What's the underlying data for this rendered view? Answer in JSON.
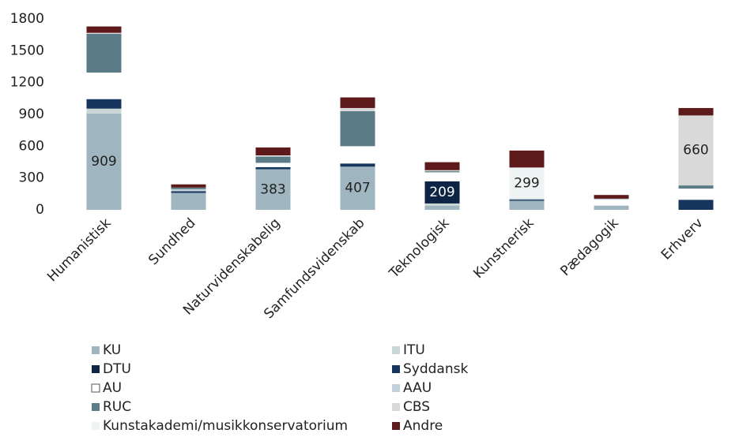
{
  "chart_data": {
    "type": "bar",
    "stacked": true,
    "categories": [
      "Humanistisk",
      "Sundhed",
      "Naturvidenskabelig",
      "Samfundsvidenskab",
      "Teknologisk",
      "Kunstnerisk",
      "Pædagogik",
      "Erhverv"
    ],
    "ylim": [
      0,
      1800
    ],
    "yticks": [
      0,
      300,
      600,
      900,
      1200,
      1500,
      1800
    ],
    "grid": false,
    "legend": "bottom",
    "series": [
      {
        "name": "KU",
        "color": "#9fb5bf",
        "values": [
          909,
          160,
          383,
          407,
          40,
          85,
          40,
          0
        ],
        "value_labels": [
          "909",
          null,
          "383",
          "407",
          null,
          null,
          null,
          null
        ]
      },
      {
        "name": "ITU",
        "color": "#c9d8d6",
        "values": [
          45,
          0,
          0,
          0,
          20,
          0,
          0,
          0
        ]
      },
      {
        "name": "DTU",
        "color": "#0d2444",
        "values": [
          0,
          0,
          0,
          0,
          209,
          0,
          0,
          0
        ],
        "value_labels": [
          null,
          null,
          null,
          null,
          "209",
          null,
          null,
          null
        ]
      },
      {
        "name": "Syddansk",
        "color": "#17365d",
        "values": [
          90,
          15,
          20,
          30,
          0,
          10,
          0,
          95
        ]
      },
      {
        "name": "AU",
        "color": "#ffffff",
        "values": [
          250,
          0,
          40,
          163,
          85,
          0,
          55,
          105
        ]
      },
      {
        "name": "AAU",
        "color": "#c3d1da",
        "values": [
          0,
          20,
          0,
          0,
          0,
          0,
          10,
          0
        ]
      },
      {
        "name": "RUC",
        "color": "#5b7b87",
        "values": [
          365,
          15,
          60,
          330,
          10,
          5,
          0,
          30
        ]
      },
      {
        "name": "CBS",
        "color": "#d9d9d9",
        "values": [
          10,
          0,
          0,
          30,
          10,
          0,
          0,
          660
        ],
        "value_labels": [
          null,
          null,
          null,
          null,
          null,
          null,
          null,
          "660"
        ]
      },
      {
        "name": "Kunstakademi/musikkonservatorium",
        "color": "#eef3f4",
        "values": [
          0,
          0,
          10,
          0,
          0,
          299,
          0,
          0
        ],
        "value_labels": [
          null,
          null,
          null,
          null,
          null,
          "299",
          null,
          null
        ]
      },
      {
        "name": "Andre",
        "color": "#5e1a1a",
        "values": [
          60,
          30,
          75,
          100,
          75,
          160,
          35,
          70
        ]
      }
    ]
  }
}
